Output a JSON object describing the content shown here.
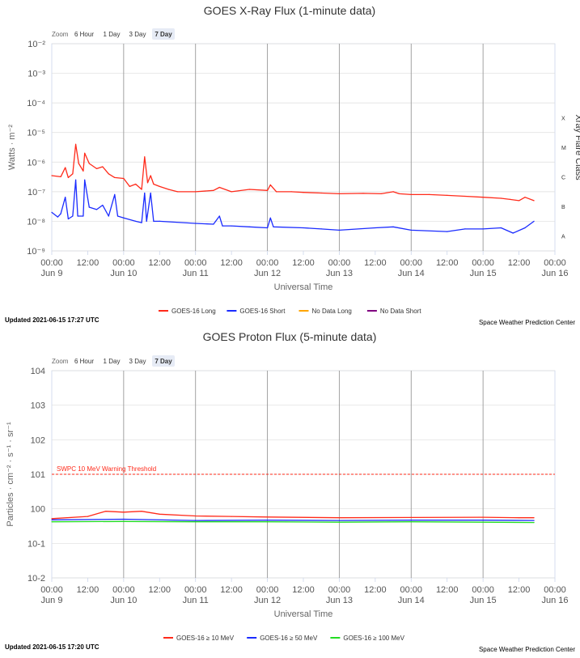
{
  "xray": {
    "zoom_label": "Zoom",
    "zoom_buttons": [
      "6 Hour",
      "1 Day",
      "3 Day",
      "7 Day"
    ],
    "zoom_selected": "7 Day",
    "updated": "Updated 2021-06-15 17:27 UTC",
    "credit": "Space Weather Prediction Center",
    "right_axis_title": "Xray Flare Class",
    "flare_classes": [
      "X",
      "M",
      "C",
      "B",
      "A"
    ]
  },
  "proton": {
    "zoom_label": "Zoom",
    "zoom_buttons": [
      "6 Hour",
      "1 Day",
      "3 Day",
      "7 Day"
    ],
    "zoom_selected": "7 Day",
    "updated": "Updated 2021-06-15 17:20 UTC",
    "credit": "Space Weather Prediction Center",
    "threshold_label": "SWPC 10 MeV Warning Threshold"
  },
  "colors": {
    "red": "#ff2a1a",
    "blue": "#1a2bff",
    "orange": "#ffa500",
    "purple": "#800080",
    "green": "#22dd22",
    "zoom_selected_bg": "#e6ebf5",
    "grid": "#dddddd",
    "day_line": "#999999"
  },
  "chart_data": [
    {
      "type": "line",
      "title": "GOES X-Ray Flux (1-minute data)",
      "xlabel": "Universal Time",
      "ylabel": "Watts · m⁻²",
      "y_scale": "log",
      "ylim": [
        1e-09,
        0.01
      ],
      "x_range": [
        "2021-06-09 00:00",
        "2021-06-16 00:00"
      ],
      "y_ticks": [
        "10⁻²",
        "10⁻³",
        "10⁻⁴",
        "10⁻⁵",
        "10⁻⁶",
        "10⁻⁷",
        "10⁻⁸",
        "10⁻⁹"
      ],
      "x_ticks": [
        {
          "time": "00:00",
          "date": "Jun 9"
        },
        {
          "time": "12:00",
          "date": ""
        },
        {
          "time": "00:00",
          "date": "Jun 10"
        },
        {
          "time": "12:00",
          "date": ""
        },
        {
          "time": "00:00",
          "date": "Jun 11"
        },
        {
          "time": "12:00",
          "date": ""
        },
        {
          "time": "00:00",
          "date": "Jun 12"
        },
        {
          "time": "12:00",
          "date": ""
        },
        {
          "time": "00:00",
          "date": "Jun 13"
        },
        {
          "time": "12:00",
          "date": ""
        },
        {
          "time": "00:00",
          "date": "Jun 14"
        },
        {
          "time": "12:00",
          "date": ""
        },
        {
          "time": "00:00",
          "date": "Jun 15"
        },
        {
          "time": "12:00",
          "date": ""
        },
        {
          "time": "00:00",
          "date": "Jun 16"
        }
      ],
      "grid": true,
      "legend_position": "bottom",
      "series": [
        {
          "name": "GOES-16 Long",
          "color": "#ff2a1a",
          "points": [
            [
              "2021-06-09 00:00",
              3.5e-07
            ],
            [
              "2021-06-09 03:00",
              3.2e-07
            ],
            [
              "2021-06-09 04:30",
              6.5e-07
            ],
            [
              "2021-06-09 05:30",
              3e-07
            ],
            [
              "2021-06-09 07:00",
              4e-07
            ],
            [
              "2021-06-09 08:00",
              4e-06
            ],
            [
              "2021-06-09 09:00",
              9e-07
            ],
            [
              "2021-06-09 10:30",
              5e-07
            ],
            [
              "2021-06-09 11:00",
              2e-06
            ],
            [
              "2021-06-09 12:30",
              9e-07
            ],
            [
              "2021-06-09 15:00",
              6e-07
            ],
            [
              "2021-06-09 17:00",
              7e-07
            ],
            [
              "2021-06-09 19:00",
              4e-07
            ],
            [
              "2021-06-09 21:00",
              3e-07
            ],
            [
              "2021-06-10 00:00",
              2.8e-07
            ],
            [
              "2021-06-10 02:00",
              1.5e-07
            ],
            [
              "2021-06-10 04:00",
              1.8e-07
            ],
            [
              "2021-06-10 06:00",
              1.2e-07
            ],
            [
              "2021-06-10 07:00",
              1.5e-06
            ],
            [
              "2021-06-10 08:00",
              2e-07
            ],
            [
              "2021-06-10 09:00",
              3.5e-07
            ],
            [
              "2021-06-10 10:00",
              1.8e-07
            ],
            [
              "2021-06-10 12:00",
              1.5e-07
            ],
            [
              "2021-06-10 15:00",
              1.2e-07
            ],
            [
              "2021-06-10 18:00",
              1e-07
            ],
            [
              "2021-06-11 00:00",
              1e-07
            ],
            [
              "2021-06-11 06:00",
              1.1e-07
            ],
            [
              "2021-06-11 08:00",
              1.4e-07
            ],
            [
              "2021-06-11 12:00",
              1e-07
            ],
            [
              "2021-06-11 18:00",
              1.2e-07
            ],
            [
              "2021-06-12 00:00",
              1.1e-07
            ],
            [
              "2021-06-12 01:00",
              1.7e-07
            ],
            [
              "2021-06-12 03:00",
              1e-07
            ],
            [
              "2021-06-12 08:00",
              1e-07
            ],
            [
              "2021-06-12 12:00",
              9.5e-08
            ],
            [
              "2021-06-12 18:00",
              9e-08
            ],
            [
              "2021-06-13 00:00",
              8.5e-08
            ],
            [
              "2021-06-13 08:00",
              8.8e-08
            ],
            [
              "2021-06-13 14:00",
              8.5e-08
            ],
            [
              "2021-06-13 18:00",
              1e-07
            ],
            [
              "2021-06-13 20:00",
              8.5e-08
            ],
            [
              "2021-06-14 00:00",
              8e-08
            ],
            [
              "2021-06-14 06:00",
              8e-08
            ],
            [
              "2021-06-14 12:00",
              7.5e-08
            ],
            [
              "2021-06-14 18:00",
              7e-08
            ],
            [
              "2021-06-15 00:00",
              6.5e-08
            ],
            [
              "2021-06-15 06:00",
              6e-08
            ],
            [
              "2021-06-15 09:00",
              5.5e-08
            ],
            [
              "2021-06-15 12:00",
              5e-08
            ],
            [
              "2021-06-15 14:00",
              6.5e-08
            ],
            [
              "2021-06-15 17:00",
              5e-08
            ]
          ]
        },
        {
          "name": "GOES-16 Short",
          "color": "#1a2bff",
          "points": [
            [
              "2021-06-09 00:00",
              2e-08
            ],
            [
              "2021-06-09 02:00",
              1.4e-08
            ],
            [
              "2021-06-09 03:00",
              1.8e-08
            ],
            [
              "2021-06-09 04:30",
              6.5e-08
            ],
            [
              "2021-06-09 05:30",
              1.2e-08
            ],
            [
              "2021-06-09 07:00",
              1.5e-08
            ],
            [
              "2021-06-09 08:00",
              2.5e-07
            ],
            [
              "2021-06-09 08:40",
              1.5e-08
            ],
            [
              "2021-06-09 10:30",
              1.5e-08
            ],
            [
              "2021-06-09 11:00",
              2.5e-07
            ],
            [
              "2021-06-09 12:30",
              3e-08
            ],
            [
              "2021-06-09 15:00",
              2.5e-08
            ],
            [
              "2021-06-09 17:00",
              3.5e-08
            ],
            [
              "2021-06-09 19:00",
              1.5e-08
            ],
            [
              "2021-06-09 21:00",
              8e-08
            ],
            [
              "2021-06-09 22:00",
              1.5e-08
            ],
            [
              "2021-06-10 00:00",
              1.3e-08
            ],
            [
              "2021-06-10 04:00",
              1e-08
            ],
            [
              "2021-06-10 06:00",
              9e-09
            ],
            [
              "2021-06-10 07:00",
              9e-08
            ],
            [
              "2021-06-10 07:40",
              1e-08
            ],
            [
              "2021-06-10 09:00",
              9e-08
            ],
            [
              "2021-06-10 10:00",
              1e-08
            ],
            [
              "2021-06-10 12:00",
              1e-08
            ],
            [
              "2021-06-11 00:00",
              8.5e-09
            ],
            [
              "2021-06-11 06:00",
              8e-09
            ],
            [
              "2021-06-11 08:00",
              1.5e-08
            ],
            [
              "2021-06-11 09:00",
              7e-09
            ],
            [
              "2021-06-11 12:00",
              7e-09
            ],
            [
              "2021-06-11 18:00",
              6.5e-09
            ],
            [
              "2021-06-12 00:00",
              6e-09
            ],
            [
              "2021-06-12 01:00",
              1.3e-08
            ],
            [
              "2021-06-12 02:00",
              6.5e-09
            ],
            [
              "2021-06-12 12:00",
              6e-09
            ],
            [
              "2021-06-12 18:00",
              5.5e-09
            ],
            [
              "2021-06-13 00:00",
              5e-09
            ],
            [
              "2021-06-13 12:00",
              6e-09
            ],
            [
              "2021-06-13 18:00",
              6.5e-09
            ],
            [
              "2021-06-14 00:00",
              5e-09
            ],
            [
              "2021-06-14 12:00",
              4.5e-09
            ],
            [
              "2021-06-14 18:00",
              5.5e-09
            ],
            [
              "2021-06-15 00:00",
              5.5e-09
            ],
            [
              "2021-06-15 06:00",
              6e-09
            ],
            [
              "2021-06-15 10:00",
              4e-09
            ],
            [
              "2021-06-15 14:00",
              6e-09
            ],
            [
              "2021-06-15 17:00",
              1e-08
            ]
          ]
        },
        {
          "name": "No Data Long",
          "color": "#ffa500",
          "points": []
        },
        {
          "name": "No Data Short",
          "color": "#800080",
          "points": []
        }
      ]
    },
    {
      "type": "line",
      "title": "GOES Proton Flux (5-minute data)",
      "xlabel": "Universal Time",
      "ylabel": "Particles · cm⁻² · s⁻¹ · sr⁻¹",
      "y_scale": "log",
      "ylim": [
        0.01,
        10000
      ],
      "x_range": [
        "2021-06-09 00:00",
        "2021-06-16 00:00"
      ],
      "y_ticks": [
        "104",
        "103",
        "102",
        "101",
        "100",
        "10-1",
        "10-2"
      ],
      "x_ticks": [
        {
          "time": "00:00",
          "date": "Jun 9"
        },
        {
          "time": "12:00",
          "date": ""
        },
        {
          "time": "00:00",
          "date": "Jun 10"
        },
        {
          "time": "12:00",
          "date": ""
        },
        {
          "time": "00:00",
          "date": "Jun 11"
        },
        {
          "time": "12:00",
          "date": ""
        },
        {
          "time": "00:00",
          "date": "Jun 12"
        },
        {
          "time": "12:00",
          "date": ""
        },
        {
          "time": "00:00",
          "date": "Jun 13"
        },
        {
          "time": "12:00",
          "date": ""
        },
        {
          "time": "00:00",
          "date": "Jun 14"
        },
        {
          "time": "12:00",
          "date": ""
        },
        {
          "time": "00:00",
          "date": "Jun 15"
        },
        {
          "time": "12:00",
          "date": ""
        },
        {
          "time": "00:00",
          "date": "Jun 16"
        }
      ],
      "grid": true,
      "legend_position": "bottom",
      "threshold": 10,
      "series": [
        {
          "name": "GOES-16 ≥ 10 MeV",
          "color": "#ff2a1a",
          "points": [
            [
              "2021-06-09 00:00",
              0.52
            ],
            [
              "2021-06-09 12:00",
              0.6
            ],
            [
              "2021-06-09 18:00",
              0.85
            ],
            [
              "2021-06-10 00:00",
              0.8
            ],
            [
              "2021-06-10 06:00",
              0.85
            ],
            [
              "2021-06-10 12:00",
              0.7
            ],
            [
              "2021-06-11 00:00",
              0.62
            ],
            [
              "2021-06-11 12:00",
              0.6
            ],
            [
              "2021-06-12 00:00",
              0.58
            ],
            [
              "2021-06-13 00:00",
              0.55
            ],
            [
              "2021-06-14 00:00",
              0.56
            ],
            [
              "2021-06-15 00:00",
              0.57
            ],
            [
              "2021-06-15 12:00",
              0.55
            ],
            [
              "2021-06-15 17:00",
              0.55
            ]
          ]
        },
        {
          "name": "GOES-16 ≥ 50 MeV",
          "color": "#1a2bff",
          "points": [
            [
              "2021-06-09 00:00",
              0.48
            ],
            [
              "2021-06-10 00:00",
              0.5
            ],
            [
              "2021-06-11 00:00",
              0.46
            ],
            [
              "2021-06-12 00:00",
              0.47
            ],
            [
              "2021-06-13 00:00",
              0.46
            ],
            [
              "2021-06-14 00:00",
              0.47
            ],
            [
              "2021-06-15 00:00",
              0.47
            ],
            [
              "2021-06-15 17:00",
              0.46
            ]
          ]
        },
        {
          "name": "GOES-16 ≥ 100 MeV",
          "color": "#22dd22",
          "points": [
            [
              "2021-06-09 00:00",
              0.42
            ],
            [
              "2021-06-10 00:00",
              0.43
            ],
            [
              "2021-06-11 00:00",
              0.42
            ],
            [
              "2021-06-12 00:00",
              0.42
            ],
            [
              "2021-06-13 00:00",
              0.41
            ],
            [
              "2021-06-14 00:00",
              0.42
            ],
            [
              "2021-06-15 00:00",
              0.41
            ],
            [
              "2021-06-15 17:00",
              0.4
            ]
          ]
        }
      ]
    }
  ]
}
